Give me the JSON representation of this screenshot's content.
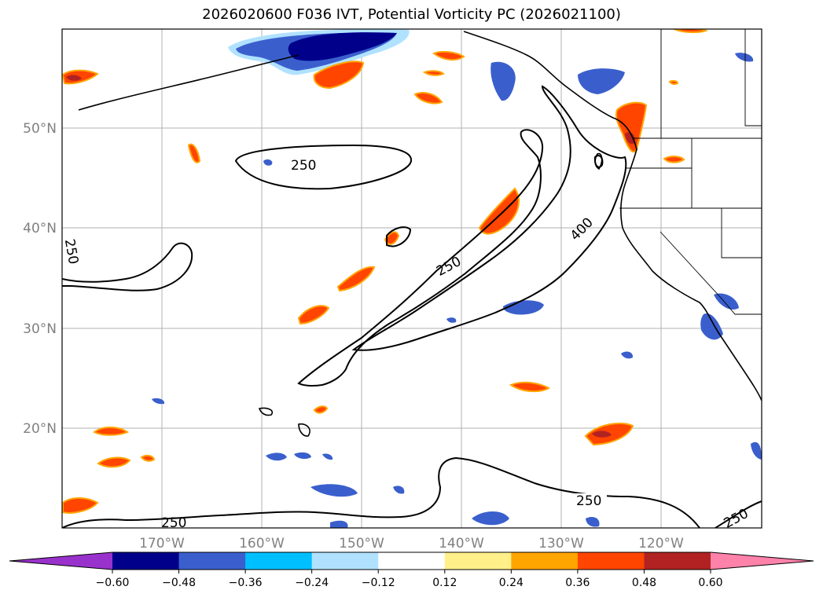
{
  "title": "2026020600 F036 IVT, Potential Vorticity PC (2026021100)",
  "map": {
    "lat_labels": [
      "50°N",
      "40°N",
      "30°N",
      "20°N"
    ],
    "lon_labels": [
      "170°W",
      "160°W",
      "150°W",
      "140°W",
      "130°W",
      "120°W"
    ],
    "ivt_contour_labels": [
      "250",
      "250",
      "400",
      "250",
      "250",
      "250",
      "250"
    ]
  },
  "colorbar": {
    "ticks": [
      "−0.60",
      "−0.48",
      "−0.36",
      "−0.24",
      "−0.12",
      "0.12",
      "0.24",
      "0.36",
      "0.48",
      "0.60"
    ],
    "colors": [
      "#9932cc",
      "#00008b",
      "#3a5fcd",
      "#00bfff",
      "#b0e2ff",
      "#ffffff",
      "#fff08a",
      "#ffa500",
      "#ff4500",
      "#b22222",
      "#ff82ab"
    ]
  }
}
